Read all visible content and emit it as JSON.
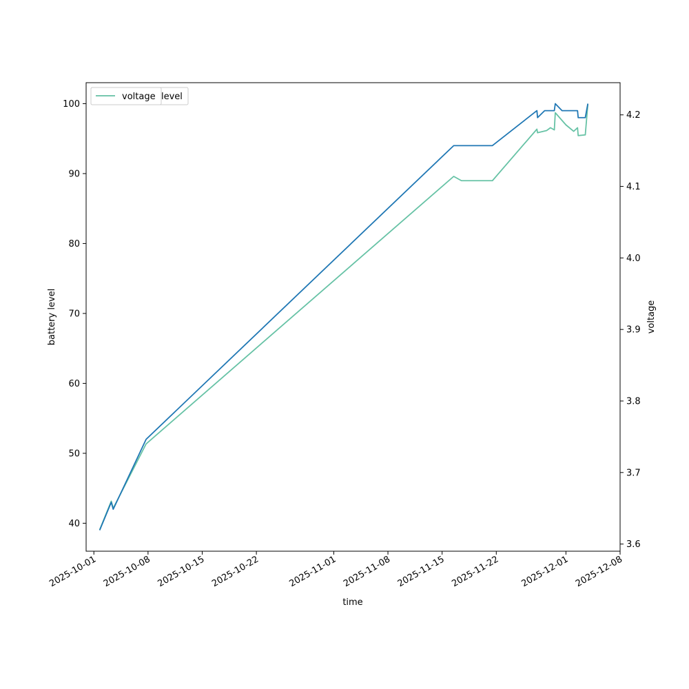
{
  "chart_data": {
    "type": "line",
    "xlabel": "time",
    "ylabel_left": "battery level",
    "ylabel_right": "voltage",
    "xlim": [
      "2025-09-30",
      "2025-12-08"
    ],
    "ylim_left": [
      36,
      103
    ],
    "ylim_right": [
      3.59,
      4.245
    ],
    "x_ticks": [
      "2025-10-01",
      "2025-10-08",
      "2025-10-15",
      "2025-10-22",
      "2025-11-01",
      "2025-11-08",
      "2025-11-15",
      "2025-11-22",
      "2025-12-01",
      "2025-12-08"
    ],
    "y_ticks_left": [
      40,
      50,
      60,
      70,
      80,
      90,
      100
    ],
    "y_ticks_right": [
      3.6,
      3.7,
      3.8,
      3.9,
      4.0,
      4.1,
      4.2
    ],
    "legend": {
      "placement": "upper-left",
      "entries": [
        "level",
        "voltage"
      ]
    },
    "colors": {
      "level": "#1f77b4",
      "voltage": "#66c2a5"
    },
    "series": [
      {
        "name": "level",
        "axis": "left",
        "points": [
          [
            "2025-10-01T18:00",
            39
          ],
          [
            "2025-10-03T06:00",
            43
          ],
          [
            "2025-10-03T12:00",
            42
          ],
          [
            "2025-10-07T18:00",
            52
          ],
          [
            "2025-11-16T12:00",
            94
          ],
          [
            "2025-11-21T12:00",
            94
          ],
          [
            "2025-11-27T06:00",
            99
          ],
          [
            "2025-11-27T08:00",
            98
          ],
          [
            "2025-11-28T06:00",
            99
          ],
          [
            "2025-11-29T12:00",
            99
          ],
          [
            "2025-11-29T15:00",
            100
          ],
          [
            "2025-11-30T12:00",
            99
          ],
          [
            "2025-12-02T12:00",
            99
          ],
          [
            "2025-12-02T14:00",
            98
          ],
          [
            "2025-12-03T12:00",
            98
          ],
          [
            "2025-12-03T20:00",
            100
          ]
        ]
      },
      {
        "name": "voltage",
        "axis": "right",
        "points": [
          [
            "2025-10-01T18:00",
            3.62
          ],
          [
            "2025-10-03T06:00",
            3.66
          ],
          [
            "2025-10-03T12:00",
            3.65
          ],
          [
            "2025-10-07T18:00",
            3.74
          ],
          [
            "2025-11-16T12:00",
            4.114
          ],
          [
            "2025-11-17T12:00",
            4.108
          ],
          [
            "2025-11-21T12:00",
            4.108
          ],
          [
            "2025-11-27T06:00",
            4.18
          ],
          [
            "2025-11-27T08:00",
            4.175
          ],
          [
            "2025-11-28T12:00",
            4.178
          ],
          [
            "2025-11-29T00:00",
            4.182
          ],
          [
            "2025-11-29T12:00",
            4.179
          ],
          [
            "2025-11-29T15:00",
            4.203
          ],
          [
            "2025-12-01T00:00",
            4.186
          ],
          [
            "2025-12-02T00:00",
            4.177
          ],
          [
            "2025-12-02T12:00",
            4.182
          ],
          [
            "2025-12-02T14:00",
            4.171
          ],
          [
            "2025-12-03T12:00",
            4.172
          ],
          [
            "2025-12-03T20:00",
            4.215
          ]
        ]
      }
    ]
  }
}
